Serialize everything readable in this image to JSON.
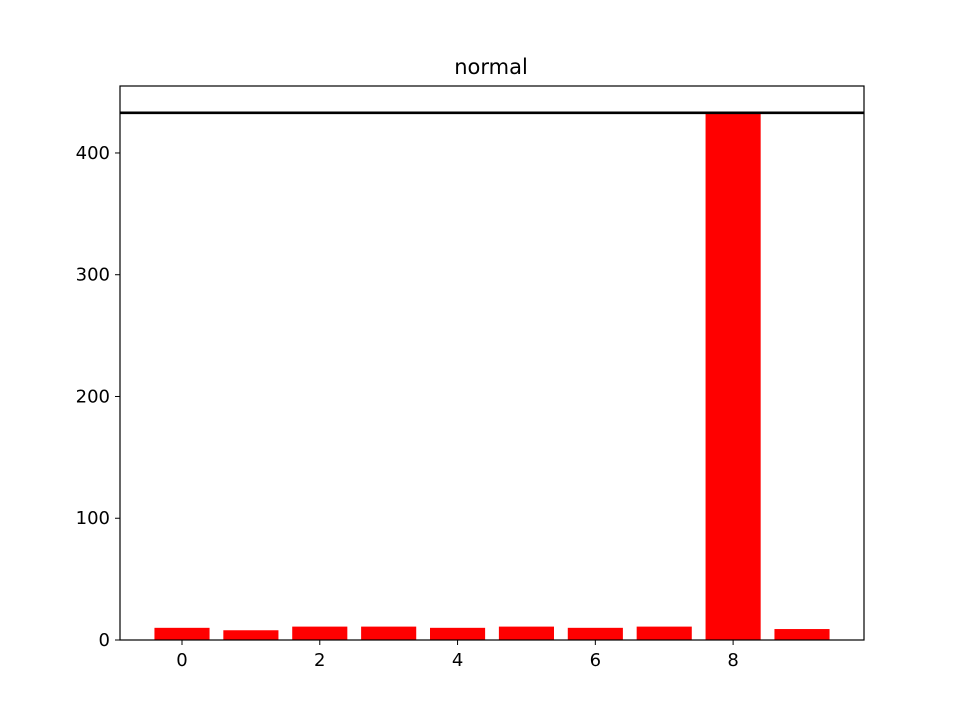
{
  "chart_data": {
    "type": "bar",
    "title": "normal",
    "xlabel": "",
    "ylabel": "",
    "categories": [
      0,
      1,
      2,
      3,
      4,
      5,
      6,
      7,
      8,
      9
    ],
    "values": [
      10,
      8,
      11,
      11,
      10,
      11,
      10,
      11,
      433,
      9
    ],
    "bar_color": "#ff0000",
    "reference_line": {
      "y": 433,
      "color": "#000000"
    },
    "xlim": [
      -0.9,
      9.9
    ],
    "ylim": [
      0,
      455
    ],
    "xticks": [
      0,
      2,
      4,
      6,
      8
    ],
    "xtick_labels": [
      "0",
      "2",
      "4",
      "6",
      "8"
    ],
    "yticks": [
      0,
      100,
      200,
      300,
      400
    ],
    "ytick_labels": [
      "0",
      "100",
      "200",
      "300",
      "400"
    ],
    "grid": false,
    "legend": "none"
  }
}
